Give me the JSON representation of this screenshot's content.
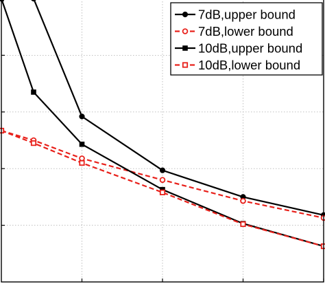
{
  "chart_data": {
    "type": "line",
    "title": "",
    "xlabel": "",
    "ylabel": "",
    "xlim": [
      0,
      4
    ],
    "ylim": [
      0,
      5
    ],
    "xticks": [
      1,
      2,
      3,
      4
    ],
    "yticks": [
      1,
      2,
      3,
      4,
      5
    ],
    "grid": true,
    "legend_position": "top-right",
    "x": [
      0,
      0.4,
      1,
      2,
      3,
      4
    ],
    "series": [
      {
        "name": "7dB,upper bound",
        "color": "#000000",
        "line_style": "solid",
        "marker": "circle",
        "values": [
          5.0,
          5.0,
          2.92,
          1.97,
          1.5,
          1.18
        ]
      },
      {
        "name": "7dB,lower bound",
        "color": "#e8201a",
        "line_style": "dashed",
        "marker": "circle-open",
        "values": [
          2.67,
          2.5,
          2.18,
          1.8,
          1.43,
          1.13
        ]
      },
      {
        "name": "10dB,upper bound",
        "color": "#000000",
        "line_style": "solid",
        "marker": "square",
        "values": [
          5.0,
          3.35,
          2.43,
          1.63,
          1.03,
          0.63
        ]
      },
      {
        "name": "10dB,lower bound",
        "color": "#e8201a",
        "line_style": "dashed",
        "marker": "square-open",
        "values": [
          2.67,
          2.45,
          2.1,
          1.58,
          1.02,
          0.63
        ]
      }
    ]
  }
}
